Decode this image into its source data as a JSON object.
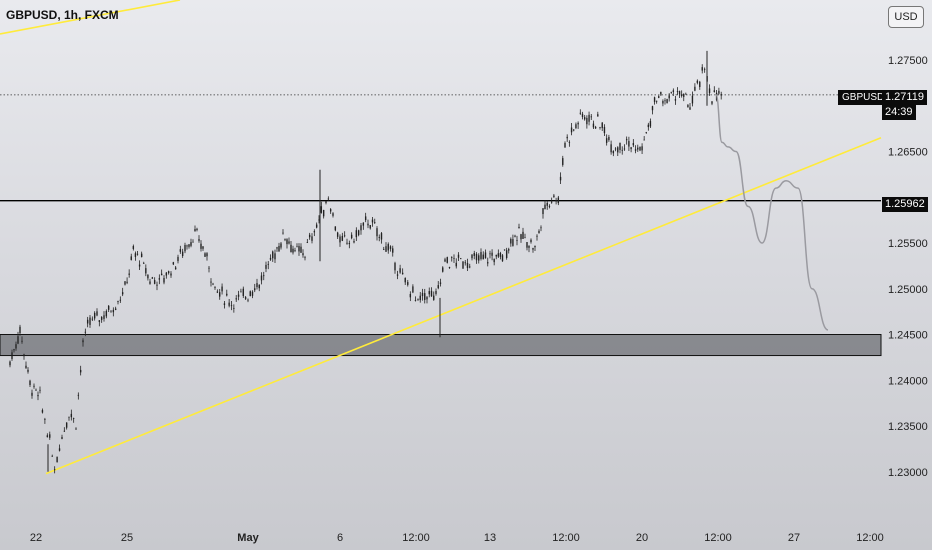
{
  "header": {
    "symbol_title": "GBPUSD, 1h, FXCM",
    "currency_button": "USD"
  },
  "price_axis": {
    "ticks": [
      "1.27500",
      "1.26500",
      "1.25500",
      "1.25000",
      "1.24500",
      "1.24000",
      "1.23500",
      "1.23000"
    ],
    "current_price": "1.27119",
    "countdown": "24:39",
    "symbol_tag": "GBPUSD",
    "horizontal_level": "1.25962"
  },
  "time_axis": {
    "ticks": [
      "22",
      "25",
      "May",
      "6",
      "12:00",
      "13",
      "12:00",
      "20",
      "12:00",
      "27",
      "12:00"
    ]
  },
  "colors": {
    "candles": "#222222",
    "trendline": "#ffeb3b",
    "projection": "#9a9aa0",
    "zone_fill": "#6f7076",
    "level_line": "#000000"
  },
  "chart_data": {
    "type": "candlestick",
    "title": "GBPUSD, 1h, FXCM",
    "y_unit": "USD",
    "ylim": [
      1.2284,
      1.2815
    ],
    "price_path": [
      [
        "Apr 19",
        1.242
      ],
      [
        "Apr 19",
        1.2455
      ],
      [
        "Apr 19",
        1.2395
      ],
      [
        "Apr 22",
        1.238
      ],
      [
        "Apr 22",
        1.2345
      ],
      [
        "Apr 22",
        1.2305
      ],
      [
        "Apr 23",
        1.234
      ],
      [
        "Apr 23",
        1.2365
      ],
      [
        "Apr 23",
        1.2355
      ],
      [
        "Apr 23",
        1.244
      ],
      [
        "Apr 24",
        1.2465
      ],
      [
        "Apr 24",
        1.247
      ],
      [
        "Apr 24",
        1.248
      ],
      [
        "Apr 25",
        1.25
      ],
      [
        "Apr 25",
        1.254
      ],
      [
        "Apr 25",
        1.253
      ],
      [
        "Apr 26",
        1.251
      ],
      [
        "Apr 26",
        1.251
      ],
      [
        "Apr 26",
        1.2525
      ],
      [
        "Apr 29",
        1.2545
      ],
      [
        "Apr 29",
        1.256
      ],
      [
        "Apr 29",
        1.254
      ],
      [
        "Apr 30",
        1.25
      ],
      [
        "Apr 30",
        1.2485
      ],
      [
        "May 1",
        1.2495
      ],
      [
        "May 1",
        1.251
      ],
      [
        "May 2",
        1.254
      ],
      [
        "May 2",
        1.256
      ],
      [
        "May 2",
        1.254
      ],
      [
        "May 3",
        1.254
      ],
      [
        "May 3",
        1.257
      ],
      [
        "May 3",
        1.26
      ],
      [
        "May 6",
        1.255
      ],
      [
        "May 6",
        1.2555
      ],
      [
        "May 7",
        1.2575
      ],
      [
        "May 7",
        1.2555
      ],
      [
        "May 8",
        1.253
      ],
      [
        "May 8",
        1.251
      ],
      [
        "May 8",
        1.25
      ],
      [
        "May 9",
        1.2485
      ],
      [
        "May 9",
        1.2495
      ],
      [
        "May 9",
        1.249
      ],
      [
        "May 10",
        1.253
      ],
      [
        "May 10",
        1.253
      ],
      [
        "May 13",
        1.2535
      ],
      [
        "May 13",
        1.2535
      ],
      [
        "May 14",
        1.256
      ],
      [
        "May 14",
        1.2555
      ],
      [
        "May 14",
        1.2545
      ],
      [
        "May 15",
        1.259
      ],
      [
        "May 15",
        1.26
      ],
      [
        "May 15",
        1.26
      ],
      [
        "May 16",
        1.266
      ],
      [
        "May 16",
        1.269
      ],
      [
        "May 17",
        1.268
      ],
      [
        "May 17",
        1.2655
      ],
      [
        "May 17",
        1.266
      ],
      [
        "May 20",
        1.265
      ],
      [
        "May 20",
        1.2675
      ],
      [
        "May 20",
        1.271
      ],
      [
        "May 21",
        1.2705
      ],
      [
        "May 21",
        1.2715
      ],
      [
        "May 22",
        1.27
      ],
      [
        "May 22",
        1.272
      ],
      [
        "May 22",
        1.274
      ],
      [
        "May 23",
        1.271
      ],
      [
        "May 23",
        1.2712
      ]
    ],
    "support_zone": [
      1.2427,
      1.245
    ],
    "horizontal_level": 1.25962,
    "trendline": [
      [
        "Apr 22",
        1.2298
      ],
      [
        "May 29",
        1.2665
      ]
    ],
    "projection_path": [
      [
        "May 23",
        1.2712
      ],
      [
        "May 24",
        1.266
      ],
      [
        "May 24",
        1.2655
      ],
      [
        "May 24",
        1.265
      ],
      [
        "May 27",
        1.259
      ],
      [
        "May 27",
        1.255
      ],
      [
        "May 27",
        1.261
      ],
      [
        "May 27",
        1.2618
      ],
      [
        "May 28",
        1.261
      ],
      [
        "May 28",
        1.25
      ],
      [
        "May 29",
        1.2455
      ]
    ]
  }
}
